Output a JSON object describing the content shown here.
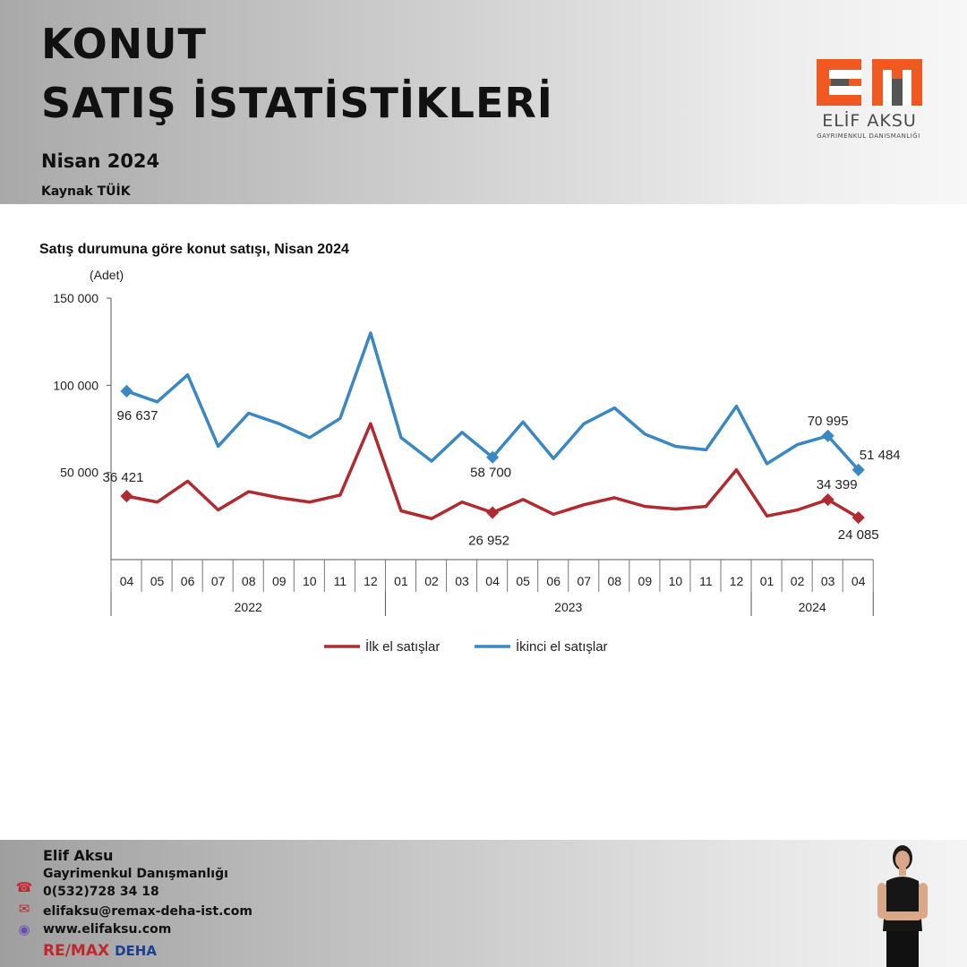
{
  "header": {
    "title_line1": "KONUT",
    "title_line2": "SATIŞ İSTATİSTİKLERİ",
    "subtitle": "Nisan 2024",
    "source": "Kaynak TÜİK"
  },
  "logo": {
    "name": "ELİF AKSU",
    "subtitle": "GAYRIMENKUL DANISMANLIĞI",
    "colors": {
      "orange": "#f05a22",
      "gray": "#555555"
    }
  },
  "chart_data": {
    "type": "line",
    "title": "Satış durumuna göre konut satışı, Nisan 2024",
    "ylabel": "(Adet)",
    "ylim": [
      0,
      150000
    ],
    "yticks": [
      "150 000",
      "100 000",
      "50 000"
    ],
    "grid": false,
    "legend_position": "bottom",
    "categories": [
      "04",
      "05",
      "06",
      "07",
      "08",
      "09",
      "10",
      "11",
      "12",
      "01",
      "02",
      "03",
      "04",
      "05",
      "06",
      "07",
      "08",
      "09",
      "10",
      "11",
      "12",
      "01",
      "02",
      "03",
      "04"
    ],
    "year_groups": [
      {
        "label": "2022",
        "count": 9
      },
      {
        "label": "2023",
        "count": 12
      },
      {
        "label": "2024",
        "count": 4
      }
    ],
    "series": [
      {
        "name": "İlk el satışlar",
        "color": "#b02a2f",
        "values": [
          36421,
          33000,
          45000,
          28500,
          39000,
          35500,
          33000,
          37000,
          78000,
          28000,
          23500,
          33000,
          26952,
          34500,
          26000,
          31500,
          35500,
          30500,
          29000,
          30500,
          51500,
          25000,
          28500,
          34399,
          24085
        ],
        "labels": [
          {
            "index": 0,
            "text": "36 421"
          },
          {
            "index": 12,
            "text": "26 952"
          },
          {
            "index": 23,
            "text": "34 399"
          },
          {
            "index": 24,
            "text": "24 085"
          }
        ]
      },
      {
        "name": "İkinci el satışlar",
        "color": "#3a87c2",
        "values": [
          96637,
          90500,
          106000,
          65000,
          84000,
          78000,
          70000,
          81000,
          130000,
          70000,
          56500,
          73000,
          58700,
          79000,
          58000,
          78000,
          87000,
          72000,
          65000,
          63000,
          88000,
          55000,
          66000,
          70995,
          51484
        ],
        "labels": [
          {
            "index": 0,
            "text": "96 637"
          },
          {
            "index": 12,
            "text": "58 700"
          },
          {
            "index": 23,
            "text": "70 995"
          },
          {
            "index": 24,
            "text": "51 484"
          }
        ]
      }
    ]
  },
  "footer": {
    "name": "Elif Aksu",
    "company": "Gayrimenkul Danışmanlığı",
    "phone": "0(532)728 34 18",
    "email": "elifaksu@remax-deha-ist.com",
    "website": "www.elifaksu.com",
    "brand": "RE/MAX",
    "brand_office": "DEHA",
    "icons": [
      "phone-icon",
      "email-icon",
      "globe-icon"
    ]
  }
}
